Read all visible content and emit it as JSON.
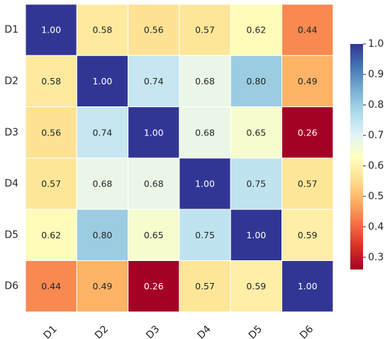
{
  "chart_data": {
    "type": "heatmap",
    "title": "",
    "xlabel": "",
    "ylabel": "",
    "x_categories": [
      "D1",
      "D2",
      "D3",
      "D4",
      "D5",
      "D6"
    ],
    "y_categories": [
      "D1",
      "D2",
      "D3",
      "D4",
      "D5",
      "D6"
    ],
    "values": [
      [
        1.0,
        0.58,
        0.56,
        0.57,
        0.62,
        0.44
      ],
      [
        0.58,
        1.0,
        0.74,
        0.68,
        0.8,
        0.49
      ],
      [
        0.56,
        0.74,
        1.0,
        0.68,
        0.65,
        0.26
      ],
      [
        0.57,
        0.68,
        0.68,
        1.0,
        0.75,
        0.57
      ],
      [
        0.62,
        0.8,
        0.65,
        0.75,
        1.0,
        0.59
      ],
      [
        0.44,
        0.49,
        0.26,
        0.57,
        0.59,
        1.0
      ]
    ],
    "cell_labels": [
      [
        "1.00",
        "0.58",
        "0.56",
        "0.57",
        "0.62",
        "0.44"
      ],
      [
        "0.58",
        "1.00",
        "0.74",
        "0.68",
        "0.80",
        "0.49"
      ],
      [
        "0.56",
        "0.74",
        "1.00",
        "0.68",
        "0.65",
        "0.26"
      ],
      [
        "0.57",
        "0.68",
        "0.68",
        "1.00",
        "0.75",
        "0.57"
      ],
      [
        "0.62",
        "0.80",
        "0.65",
        "0.75",
        "1.00",
        "0.59"
      ],
      [
        "0.44",
        "0.49",
        "0.26",
        "0.57",
        "0.59",
        "1.00"
      ]
    ],
    "colormap": "RdYlBu",
    "color_range": [
      0.26,
      1.0
    ],
    "colorbar": {
      "ticks": [
        "0.3",
        "0.4",
        "0.5",
        "0.6",
        "0.7",
        "0.8",
        "0.9",
        "1.0"
      ],
      "tick_values": [
        0.3,
        0.4,
        0.5,
        0.6,
        0.7,
        0.8,
        0.9,
        1.0
      ],
      "placement": "right"
    },
    "x_tick_rotation_deg": 45,
    "grid": false
  }
}
